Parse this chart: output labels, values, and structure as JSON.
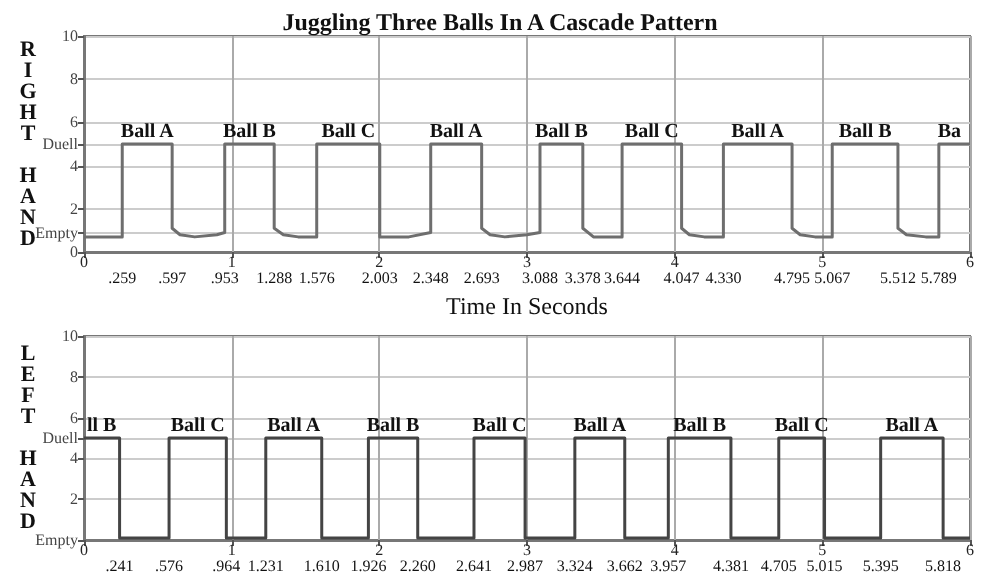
{
  "chart_data": [
    {
      "type": "line",
      "title": "Juggling Three Balls In A Cascade Pattern",
      "xlabel": "Time In Seconds",
      "ylabel": "RIGHT HAND",
      "color": "#6e6e6e",
      "grid": true,
      "x": [
        0,
        0.259,
        0.259,
        0.597,
        0.597,
        0.65,
        0.75,
        0.9,
        0.953,
        0.953,
        1.288,
        1.288,
        1.35,
        1.45,
        1.576,
        1.576,
        2.003,
        2.003,
        2.2,
        2.348,
        2.348,
        2.693,
        2.693,
        2.75,
        2.85,
        3.0,
        3.088,
        3.088,
        3.378,
        3.378,
        3.45,
        3.644,
        3.644,
        4.047,
        4.047,
        4.1,
        4.2,
        4.33,
        4.33,
        4.795,
        4.795,
        4.85,
        4.95,
        5.067,
        5.067,
        5.512,
        5.512,
        5.57,
        5.7,
        5.789,
        5.789,
        6
      ],
      "values": [
        0.7,
        0.7,
        5,
        5,
        1.1,
        0.8,
        0.7,
        0.8,
        0.9,
        5,
        5,
        1.1,
        0.8,
        0.7,
        0.7,
        5,
        5,
        0.7,
        0.7,
        0.9,
        5,
        5,
        1.1,
        0.8,
        0.7,
        0.8,
        0.9,
        5,
        5,
        1.1,
        0.7,
        0.7,
        5,
        5,
        1.1,
        0.8,
        0.7,
        0.7,
        5,
        5,
        1.1,
        0.8,
        0.7,
        0.7,
        5,
        5,
        1.1,
        0.8,
        0.7,
        0.7,
        5,
        5
      ],
      "xlim": [
        0,
        6
      ],
      "xticks": [
        0,
        1,
        2,
        3,
        4,
        5,
        6
      ],
      "ylim": [
        0,
        10
      ],
      "yticks": [
        0,
        {
          "value": 0.9,
          "label": "Empty"
        },
        2,
        4,
        {
          "value": 5,
          "label": "Duell"
        },
        6,
        8,
        10
      ],
      "annotations": [
        {
          "text": "Ball A",
          "x": 0.428,
          "y": 5
        },
        {
          "text": "Ball B",
          "x": 1.12,
          "y": 5
        },
        {
          "text": "Ball C",
          "x": 1.79,
          "y": 5
        },
        {
          "text": "Ball A",
          "x": 2.52,
          "y": 5
        },
        {
          "text": "Ball B",
          "x": 3.233,
          "y": 5
        },
        {
          "text": "Ball C",
          "x": 3.845,
          "y": 5
        },
        {
          "text": "Ball A",
          "x": 4.562,
          "y": 5
        },
        {
          "text": "Ball B",
          "x": 5.29,
          "y": 5
        },
        {
          "text": "Ba",
          "x": 5.86,
          "y": 5
        },
        {
          "text": ".259",
          "x": 0.259,
          "y": 0.7
        },
        {
          "text": ".597",
          "x": 0.597,
          "y": 1.1
        },
        {
          "text": ".953",
          "x": 0.953,
          "y": 0.9
        },
        {
          "text": "1.288",
          "x": 1.288,
          "y": 1.1
        },
        {
          "text": "1.576",
          "x": 1.576,
          "y": 0.7
        },
        {
          "text": "2.003",
          "x": 2.003,
          "y": 0.7
        },
        {
          "text": "2.348",
          "x": 2.348,
          "y": 0.9
        },
        {
          "text": "2.693",
          "x": 2.693,
          "y": 1.1
        },
        {
          "text": "3.088",
          "x": 3.088,
          "y": 0.9
        },
        {
          "text": "3.378",
          "x": 3.378,
          "y": 1.1
        },
        {
          "text": "3.644",
          "x": 3.644,
          "y": 0.7
        },
        {
          "text": "4.047",
          "x": 4.047,
          "y": 1.1
        },
        {
          "text": "4.330",
          "x": 4.33,
          "y": 0.7
        },
        {
          "text": "4.795",
          "x": 4.795,
          "y": 1.1
        },
        {
          "text": "5.067",
          "x": 5.067,
          "y": 0.7
        },
        {
          "text": "5.512",
          "x": 5.512,
          "y": 1.1
        },
        {
          "text": "5.789",
          "x": 5.789,
          "y": 0.7
        }
      ]
    },
    {
      "type": "line",
      "ylabel": "LEFT HAND",
      "color": "#444444",
      "grid": true,
      "x": [
        0,
        0.241,
        0.241,
        0.576,
        0.576,
        0.964,
        0.964,
        1.231,
        1.231,
        1.61,
        1.61,
        1.926,
        1.926,
        2.26,
        2.26,
        2.641,
        2.641,
        2.987,
        2.987,
        3.324,
        3.324,
        3.662,
        3.662,
        3.957,
        3.957,
        4.381,
        4.381,
        4.705,
        4.705,
        5.015,
        5.015,
        5.395,
        5.395,
        5.818,
        5.818,
        6
      ],
      "values": [
        5,
        5,
        0.1,
        0.1,
        5,
        5,
        0.1,
        0.1,
        5,
        5,
        0.1,
        0.1,
        5,
        5,
        0.1,
        0.1,
        5,
        5,
        0.1,
        0.1,
        5,
        5,
        0.1,
        0.1,
        5,
        5,
        0.1,
        0.1,
        5,
        5,
        0.1,
        0.1,
        5,
        5,
        0.1,
        0.1
      ],
      "xlim": [
        0,
        6
      ],
      "xticks": [
        0,
        1,
        2,
        3,
        4,
        5,
        6
      ],
      "ylim": [
        0,
        10
      ],
      "yticks": [
        {
          "value": 0,
          "label": "Empty"
        },
        2,
        4,
        {
          "value": 5,
          "label": "Duell"
        },
        6,
        8,
        10
      ],
      "annotations": [
        {
          "text": "ll B",
          "x": 0.12,
          "y": 5
        },
        {
          "text": "Ball C",
          "x": 0.77,
          "y": 5
        },
        {
          "text": "Ball A",
          "x": 1.42,
          "y": 5
        },
        {
          "text": "Ball B",
          "x": 2.093,
          "y": 5
        },
        {
          "text": "Ball C",
          "x": 2.814,
          "y": 5
        },
        {
          "text": "Ball A",
          "x": 3.493,
          "y": 5
        },
        {
          "text": "Ball B",
          "x": 4.169,
          "y": 5
        },
        {
          "text": "Ball C",
          "x": 4.86,
          "y": 5
        },
        {
          "text": "Ball A",
          "x": 5.606,
          "y": 5
        },
        {
          "text": ".241",
          "x": 0.241,
          "y": 0.1
        },
        {
          "text": ".576",
          "x": 0.576,
          "y": 0.1
        },
        {
          "text": ".964",
          "x": 0.964,
          "y": 0.1
        },
        {
          "text": "1.231",
          "x": 1.231,
          "y": 0.1
        },
        {
          "text": "1.610",
          "x": 1.61,
          "y": 0.1
        },
        {
          "text": "1.926",
          "x": 1.926,
          "y": 0.1
        },
        {
          "text": "2.260",
          "x": 2.26,
          "y": 0.1
        },
        {
          "text": "2.641",
          "x": 2.641,
          "y": 0.1
        },
        {
          "text": "2.987",
          "x": 2.987,
          "y": 0.1
        },
        {
          "text": "3.324",
          "x": 3.324,
          "y": 0.1
        },
        {
          "text": "3.662",
          "x": 3.662,
          "y": 0.1
        },
        {
          "text": "3.957",
          "x": 3.957,
          "y": 0.1
        },
        {
          "text": "4.381",
          "x": 4.381,
          "y": 0.1
        },
        {
          "text": "4.705",
          "x": 4.705,
          "y": 0.1
        },
        {
          "text": "5.015",
          "x": 5.015,
          "y": 0.1
        },
        {
          "text": "5.395",
          "x": 5.395,
          "y": 0.1
        },
        {
          "text": "5.818",
          "x": 5.818,
          "y": 0.1
        }
      ]
    }
  ]
}
